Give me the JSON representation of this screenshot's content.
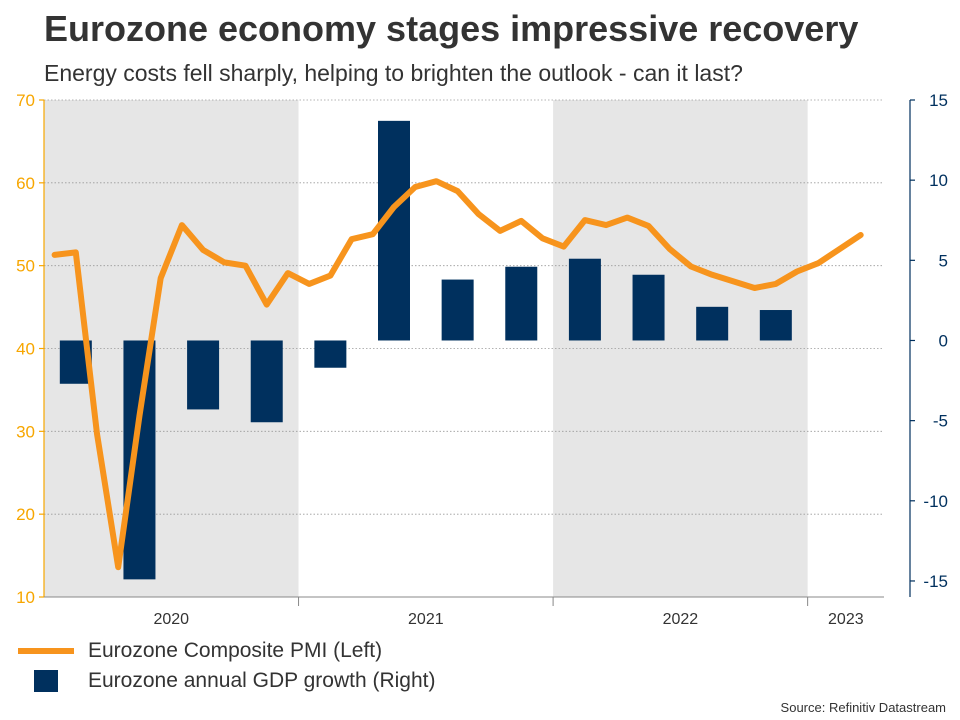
{
  "header": {
    "title": "Eurozone economy stages impressive recovery",
    "subtitle": "Energy costs fell sharply, helping to brighten the outlook - can it last?"
  },
  "footer": {
    "source": "Source: Refinitiv Datastream"
  },
  "colors": {
    "pmi": "#F7941D",
    "gdp": "#00305E",
    "shade": "#E6E6E6",
    "left_axis": "#F7A600",
    "right_axis": "#00305E",
    "text": "#333333"
  },
  "chart_data": {
    "type": "bar",
    "title": "Eurozone economy stages impressive recovery",
    "subtitle": "Energy costs fell sharply, helping to brighten the outlook - can it last?",
    "x_labels": [
      "2020",
      "2021",
      "2022",
      "2023"
    ],
    "shaded_years": [
      "2020",
      "2022"
    ],
    "grid": true,
    "legend_position": "bottom-left",
    "y_left": {
      "min": 10,
      "max": 70,
      "ticks": [
        10,
        20,
        30,
        40,
        50,
        60,
        70
      ]
    },
    "y_right": {
      "min": -16,
      "max": 15,
      "ticks": [
        -15,
        -10,
        -5,
        0,
        5,
        10,
        15
      ]
    },
    "series": [
      {
        "name": "Eurozone Composite PMI (Left)",
        "type": "line",
        "axis": "left",
        "x": [
          "2020-01",
          "2020-02",
          "2020-03",
          "2020-04",
          "2020-05",
          "2020-06",
          "2020-07",
          "2020-08",
          "2020-09",
          "2020-10",
          "2020-11",
          "2020-12",
          "2021-01",
          "2021-02",
          "2021-03",
          "2021-04",
          "2021-05",
          "2021-06",
          "2021-07",
          "2021-08",
          "2021-09",
          "2021-10",
          "2021-11",
          "2021-12",
          "2022-01",
          "2022-02",
          "2022-03",
          "2022-04",
          "2022-05",
          "2022-06",
          "2022-07",
          "2022-08",
          "2022-09",
          "2022-10",
          "2022-11",
          "2022-12",
          "2023-01",
          "2023-02",
          "2023-03"
        ],
        "values": [
          51.3,
          51.6,
          29.7,
          13.6,
          31.9,
          48.5,
          54.9,
          51.9,
          50.4,
          50.0,
          45.3,
          49.1,
          47.8,
          48.8,
          53.2,
          53.8,
          57.1,
          59.5,
          60.2,
          59.0,
          56.2,
          54.2,
          55.4,
          53.3,
          52.3,
          55.5,
          54.9,
          55.8,
          54.8,
          52.0,
          49.9,
          48.9,
          48.1,
          47.3,
          47.8,
          49.3,
          50.3,
          52.0,
          53.7
        ]
      },
      {
        "name": "Eurozone annual GDP growth (Right)",
        "type": "bar",
        "axis": "right",
        "x": [
          "2020-Q1",
          "2020-Q2",
          "2020-Q3",
          "2020-Q4",
          "2021-Q1",
          "2021-Q2",
          "2021-Q3",
          "2021-Q4",
          "2022-Q1",
          "2022-Q2",
          "2022-Q3",
          "2022-Q4"
        ],
        "values": [
          -2.7,
          -14.9,
          -4.3,
          -5.1,
          -1.7,
          13.7,
          3.8,
          4.6,
          5.1,
          4.1,
          2.1,
          1.9
        ]
      }
    ]
  }
}
